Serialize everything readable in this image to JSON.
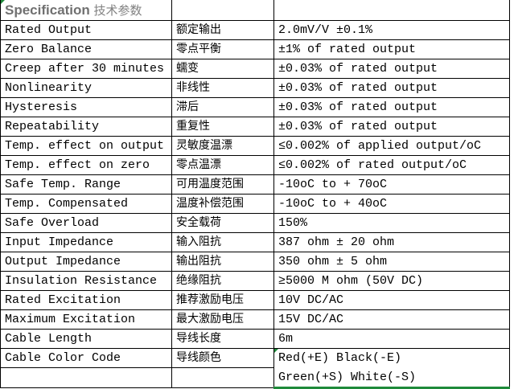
{
  "header": {
    "title_en": "Specification",
    "title_cn": "技术参数"
  },
  "rows": [
    {
      "en": "Rated Output",
      "cn": "额定输出",
      "value": "2.0mV/V ±0.1%"
    },
    {
      "en": "Zero Balance",
      "cn": "零点平衡",
      "value": "±1% of rated output"
    },
    {
      "en": "Creep after 30 minutes",
      "cn": "蠕变",
      "value": "±0.03% of rated output"
    },
    {
      "en": "Nonlinearity",
      "cn": "非线性",
      "value": "±0.03% of rated output"
    },
    {
      "en": "Hysteresis",
      "cn": "滞后",
      "value": "±0.03% of rated output"
    },
    {
      "en": "Repeatability",
      "cn": "重复性",
      "value": "±0.03% of rated output"
    },
    {
      "en": "Temp. effect on output",
      "cn": "灵敏度温漂",
      "value": "≤0.002% of applied output/oC"
    },
    {
      "en": "Temp. effect on zero",
      "cn": "零点温漂",
      "value": "≤0.002% of rated output/oC"
    },
    {
      "en": "Safe Temp. Range",
      "cn": "可用温度范围",
      "value": "-10oC to + 70oC"
    },
    {
      "en": "Temp. Compensated",
      "cn": "温度补偿范围",
      "value": "-10oC to + 40oC"
    },
    {
      "en": "Safe Overload",
      "cn": "安全载荷",
      "value": "150%"
    },
    {
      "en": "Input Impedance",
      "cn": "输入阻抗",
      "value": "387 ohm ± 20 ohm"
    },
    {
      "en": "Output Impedance",
      "cn": "输出阻抗",
      "value": "350 ohm ± 5 ohm"
    },
    {
      "en": "Insulation Resistance",
      "cn": "绝缘阻抗",
      "value": "≥5000 M ohm (50V DC)"
    },
    {
      "en": "Rated Excitation",
      "cn": "推荐激励电压",
      "value": "10V DC/AC"
    },
    {
      "en": "Maximum Excitation",
      "cn": "最大激励电压",
      "value": "15V DC/AC"
    },
    {
      "en": "Cable Length",
      "cn": "导线长度",
      "value": "6m"
    },
    {
      "en": "Cable Color Code",
      "cn": "导线颜色",
      "value": "Red(+E) Black(-E)"
    }
  ],
  "extra_row": {
    "value": "Green(+S) White(-S)"
  },
  "colors": {
    "selection": "#1e8a3a",
    "title": "#707070"
  }
}
